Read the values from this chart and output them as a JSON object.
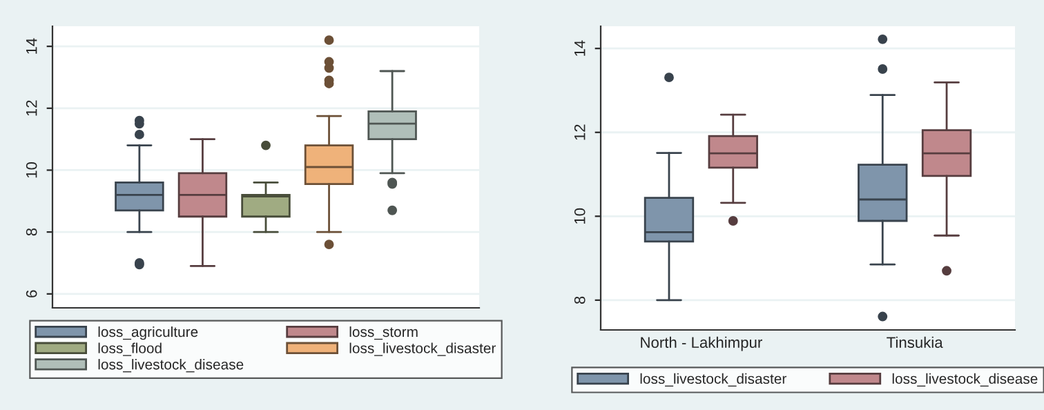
{
  "chart_data": [
    {
      "type": "box",
      "categories": [
        null
      ],
      "ylim": [
        5.55,
        14.65
      ],
      "yticks": [
        6,
        8,
        10,
        12,
        14
      ],
      "grid": "y",
      "legend": "bottom",
      "tick_labels": "y",
      "series": [
        {
          "name": "loss_agriculture",
          "color": "#7f95ab",
          "boxes": [
            {
              "low": 8.0,
              "q1": 8.7,
              "median": 9.2,
              "q3": 9.6,
              "high": 10.8,
              "outliers": [
                11.15,
                11.5,
                11.6,
                7.0,
                6.95
              ]
            }
          ]
        },
        {
          "name": "loss_storm",
          "color": "#c0888c",
          "boxes": [
            {
              "low": 6.9,
              "q1": 8.5,
              "median": 9.2,
              "q3": 9.9,
              "high": 11.0
            }
          ]
        },
        {
          "name": "loss_flood",
          "color": "#a0ab82",
          "boxes": [
            {
              "low": 8.0,
              "q1": 8.5,
              "median": 9.15,
              "q3": 9.2,
              "high": 9.6,
              "outliers": [
                10.8
              ]
            }
          ]
        },
        {
          "name": "loss_livestock_disaster",
          "color": "#efb27a",
          "boxes": [
            {
              "low": 8.0,
              "q1": 9.55,
              "median": 10.1,
              "q3": 10.8,
              "high": 11.75,
              "outliers": [
                7.6,
                12.8,
                12.9,
                13.3,
                13.5,
                14.2
              ]
            }
          ]
        },
        {
          "name": "loss_livestock_disease",
          "color": "#b0bfb9",
          "boxes": [
            {
              "low": 9.9,
              "q1": 11.0,
              "median": 11.5,
              "q3": 11.9,
              "high": 13.2,
              "outliers": [
                9.6,
                9.55,
                8.7
              ]
            }
          ]
        }
      ]
    },
    {
      "type": "box",
      "categories": [
        "North - Lakhimpur",
        "Tinsukia"
      ],
      "ylim": [
        7.29,
        14.53
      ],
      "yticks": [
        8,
        10,
        12,
        14
      ],
      "grid": "y",
      "legend": "bottom",
      "series": [
        {
          "name": "loss_livestock_disaster",
          "color": "#7f95ab",
          "boxes": [
            {
              "low": 8.0,
              "q1": 9.4,
              "median": 9.62,
              "q3": 10.44,
              "high": 11.51,
              "outliers": [
                13.31
              ]
            },
            {
              "low": 8.85,
              "q1": 9.89,
              "median": 10.4,
              "q3": 11.23,
              "high": 12.89,
              "outliers": [
                14.22,
                13.51,
                7.61
              ]
            }
          ]
        },
        {
          "name": "loss_livestock_disease",
          "color": "#c0888c",
          "boxes": [
            {
              "low": 10.32,
              "q1": 11.16,
              "median": 11.5,
              "q3": 11.91,
              "high": 12.42,
              "outliers": [
                9.89
              ]
            },
            {
              "low": 9.54,
              "q1": 10.96,
              "median": 11.5,
              "q3": 12.05,
              "high": 13.19,
              "outliers": [
                8.7
              ]
            }
          ]
        }
      ]
    }
  ]
}
